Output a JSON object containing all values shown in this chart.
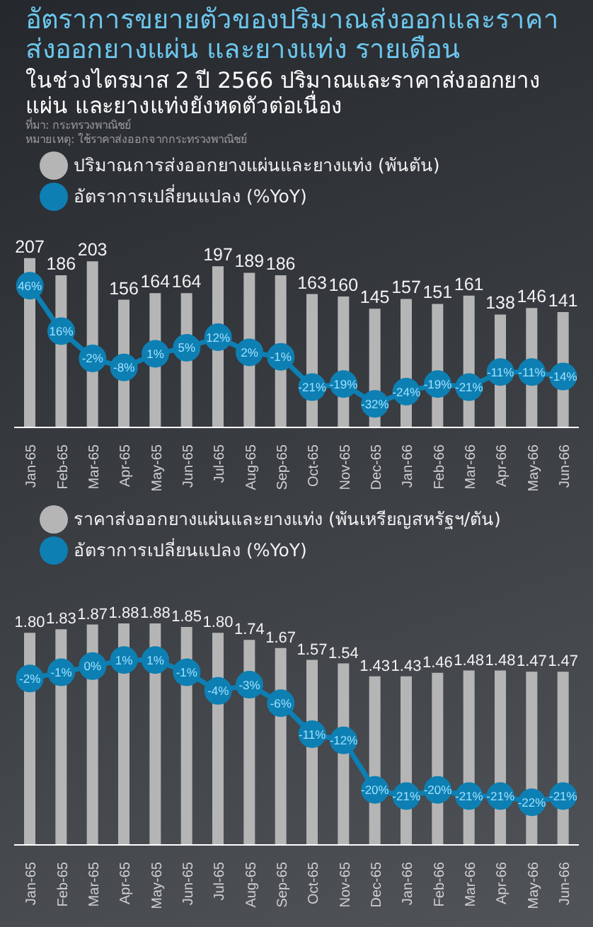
{
  "chart_data": [
    {
      "type": "bar",
      "title": "อัตราการขยายตัวของปริมาณส่งออกและราคาส่งออกยางแผ่น และยางแท่ง รายเดือน",
      "subtitle": "ในช่วงไตรมาส 2 ปี 2566 ปริมาณและราคาส่งออกยางแผ่น และยางแท่งยังหดตัวต่อเนื่อง",
      "annotations": [
        "ที่มา: กระทรวงพาณิชย์",
        "หมายเหตุ: ใช้ราคาส่งออกจากกระทรวงพาณิชย์"
      ],
      "categories": [
        "Jan-65",
        "Feb-65",
        "Mar-65",
        "Apr-65",
        "May-65",
        "Jun-65",
        "Jul-65",
        "Aug-65",
        "Sep-65",
        "Oct-65",
        "Nov-65",
        "Dec-65",
        "Jan-66",
        "Feb-66",
        "Mar-66",
        "Apr-66",
        "May-66",
        "Jun-66"
      ],
      "series": [
        {
          "name": "ปริมาณการส่งออกยางแผ่นและยางแท่ง (พันตัน)",
          "color": "#b5b5b5",
          "values": [
            207,
            186,
            203,
            156,
            164,
            164,
            197,
            189,
            186,
            163,
            160,
            145,
            157,
            151,
            161,
            138,
            146,
            141
          ],
          "value_labels": [
            "207",
            "186",
            "203",
            "156",
            "164",
            "164",
            "197",
            "189",
            "186",
            "163",
            "160",
            "145",
            "157",
            "151",
            "161",
            "138",
            "146",
            "141"
          ]
        },
        {
          "name": "อัตราการเปลี่ยนแปลง (%YoY)",
          "type": "line",
          "axis": "y2",
          "color": "#0d7fb3",
          "values": [
            46,
            16,
            -2,
            -8,
            1,
            5,
            12,
            2,
            -1,
            -21,
            -19,
            -32,
            -24,
            -19,
            -21,
            -11,
            -11,
            -14
          ],
          "value_labels": [
            "46%",
            "16%",
            "-2%",
            "-8%",
            "1%",
            "5%",
            "12%",
            "2%",
            "-1%",
            "-21%",
            "-19%",
            "-32%",
            "-24%",
            "-19%",
            "-21%",
            "-11%",
            "-11%",
            "-14%"
          ]
        }
      ],
      "marker": "circle",
      "legend": "top left",
      "tick_labels": "x"
    },
    {
      "type": "bar",
      "categories": [
        "Jan-65",
        "Feb-65",
        "Mar-65",
        "Apr-65",
        "May-65",
        "Jun-65",
        "Jul-65",
        "Aug-65",
        "Sep-65",
        "Oct-65",
        "Nov-65",
        "Dec-65",
        "Jan-66",
        "Feb-66",
        "Mar-66",
        "Apr-66",
        "May-66",
        "Jun-66"
      ],
      "series": [
        {
          "name": "ราคาส่งออกยางแผ่นและยางแท่ง (พันเหรียญสหรัฐฯ/ตัน)",
          "color": "#b5b5b5",
          "values": [
            1.8,
            1.83,
            1.87,
            1.88,
            1.88,
            1.85,
            1.8,
            1.74,
            1.67,
            1.57,
            1.54,
            1.43,
            1.43,
            1.46,
            1.48,
            1.48,
            1.47,
            1.47
          ],
          "value_labels": [
            "1.80",
            "1.83",
            "1.87",
            "1.88",
            "1.88",
            "1.85",
            "1.80",
            "1.74",
            "1.67",
            "1.57",
            "1.54",
            "1.43",
            "1.43",
            "1.46",
            "1.48",
            "1.48",
            "1.47",
            "1.47"
          ]
        },
        {
          "name": "อัตราการเปลี่ยนแปลง (%YoY)",
          "type": "line",
          "axis": "y2",
          "color": "#0d7fb3",
          "values": [
            -2,
            -1,
            0,
            1,
            1,
            -1,
            -4,
            -3,
            -6,
            -11,
            -12,
            -20,
            -21,
            -20,
            -21,
            -21,
            -22,
            -21
          ],
          "value_labels": [
            "-2%",
            "-1%",
            "0%",
            "1%",
            "1%",
            "-1%",
            "-4%",
            "-3%",
            "-6%",
            "-11%",
            "-12%",
            "-20%",
            "-21%",
            "-20%",
            "-21%",
            "-21%",
            "-22%",
            "-21%"
          ]
        }
      ],
      "marker": "circle",
      "legend": "top left",
      "tick_labels": "x"
    }
  ]
}
